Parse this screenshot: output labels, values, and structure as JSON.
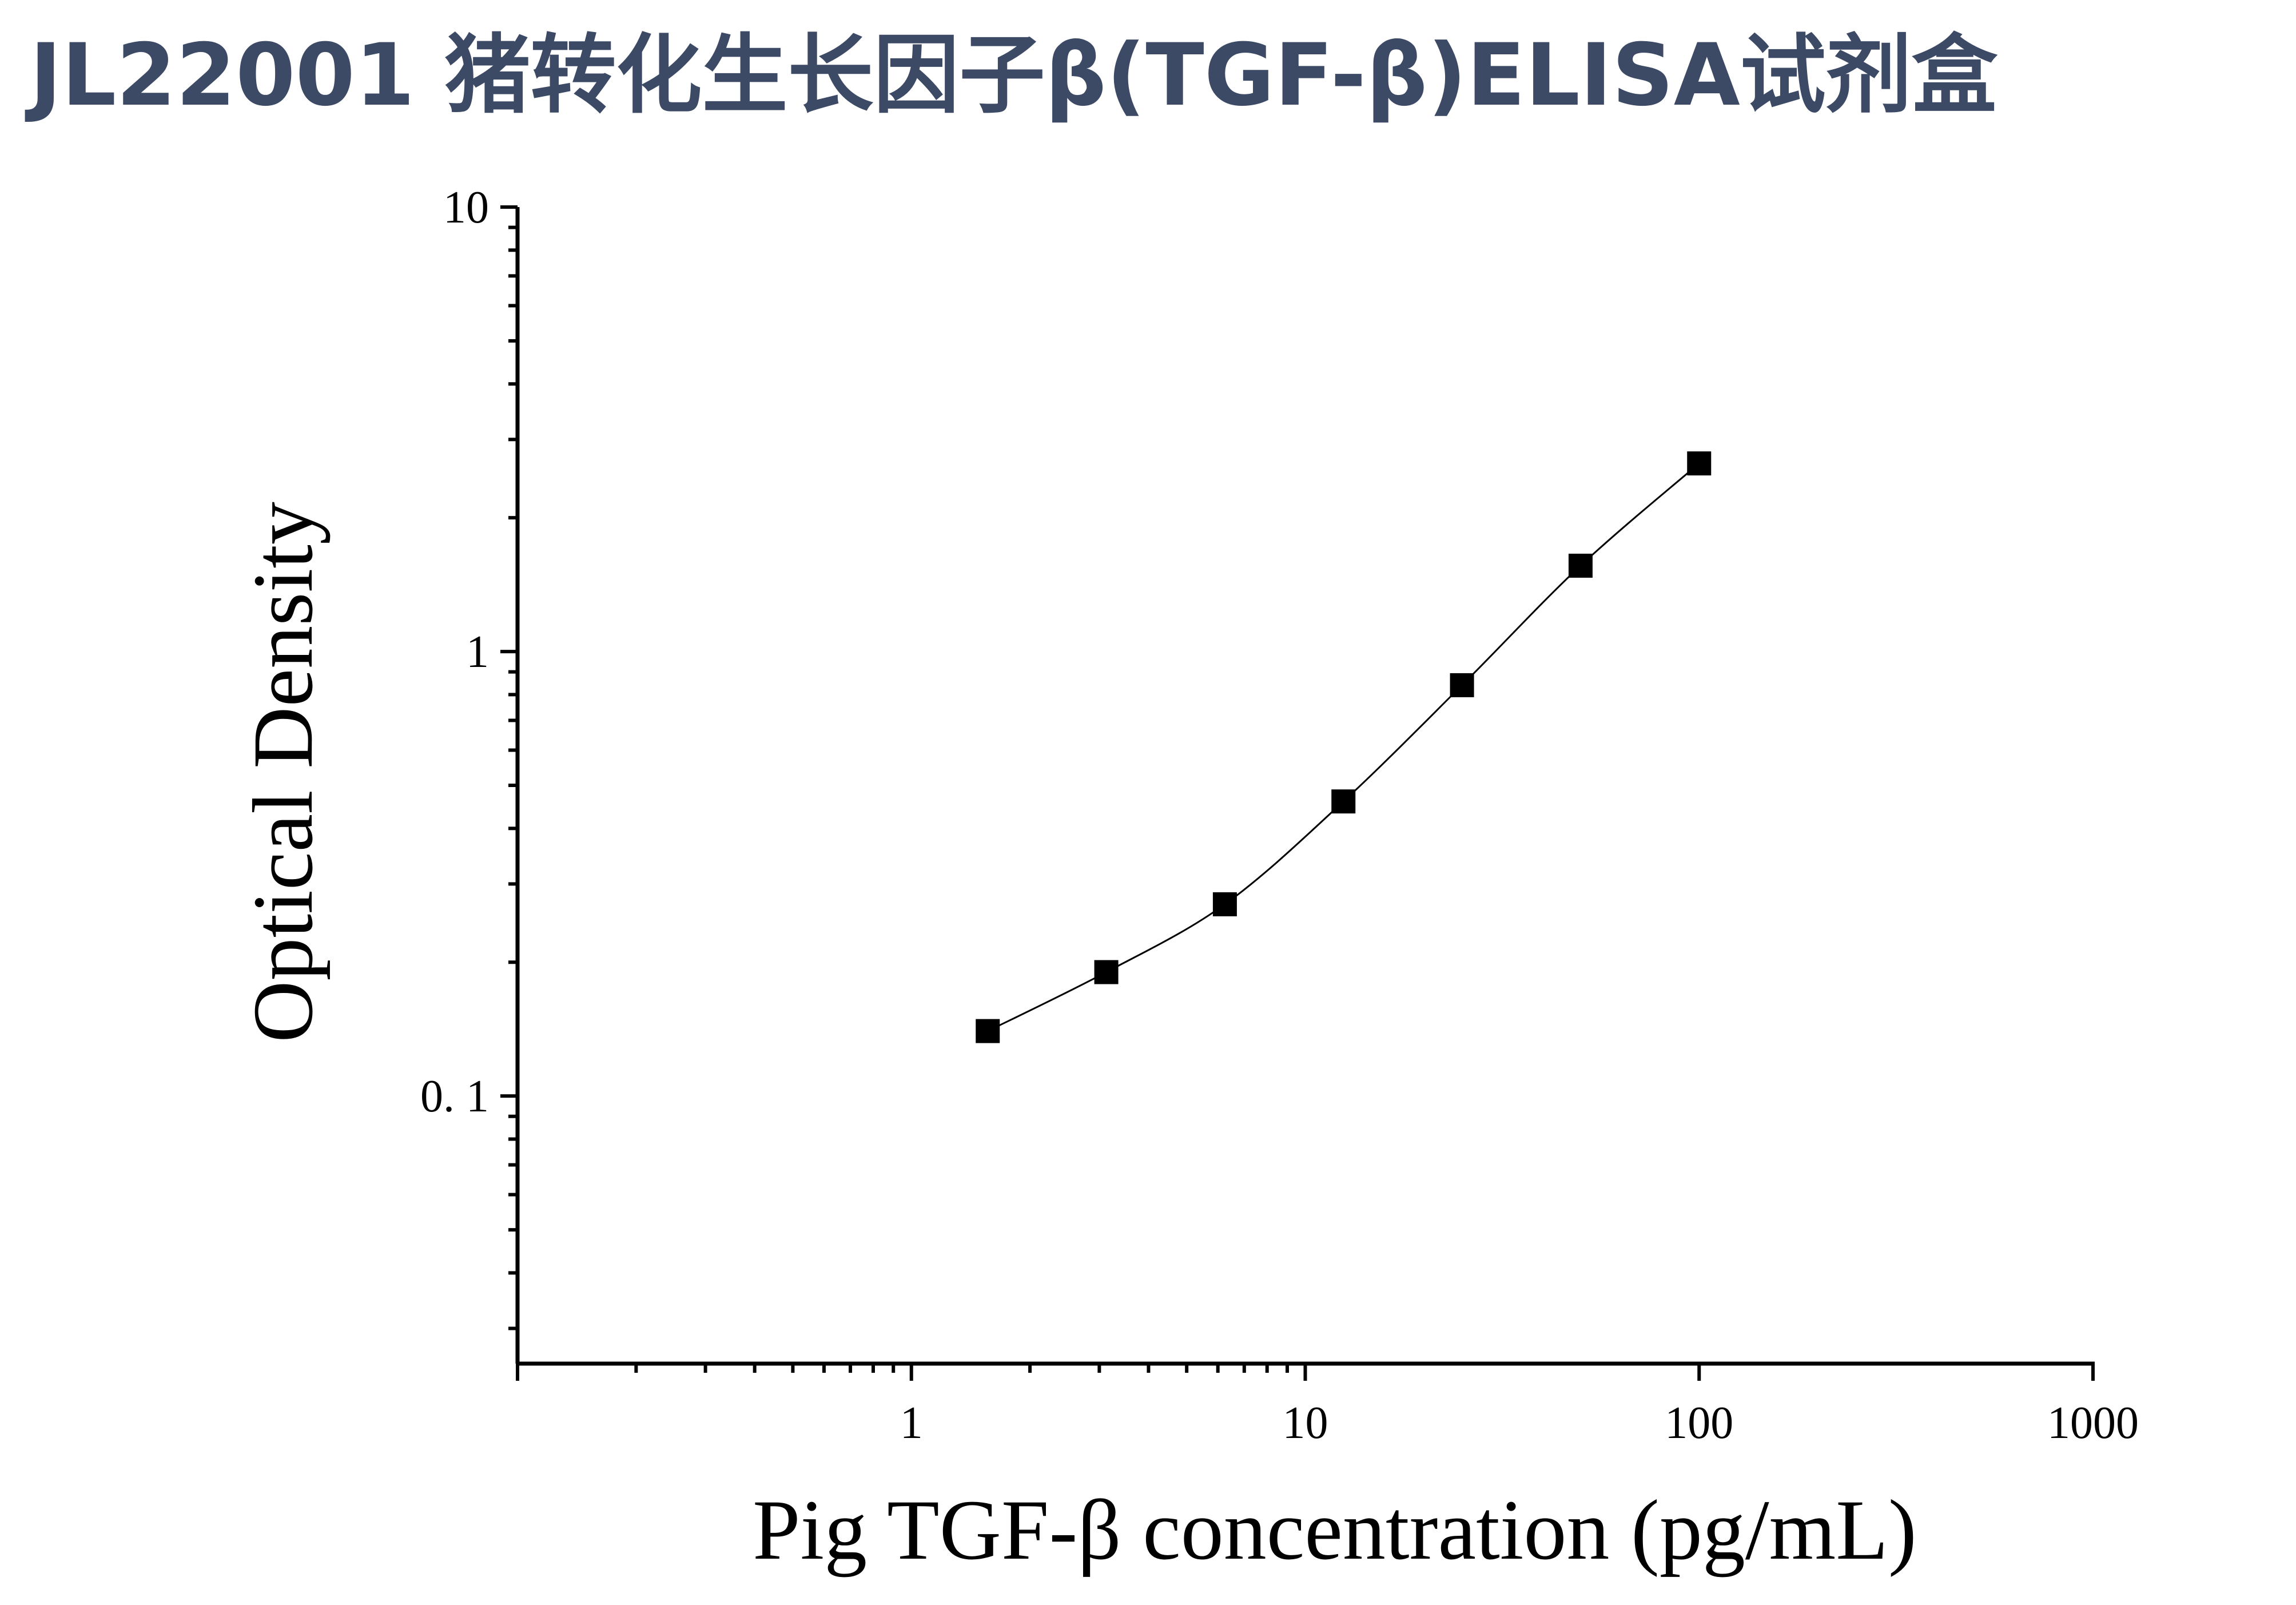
{
  "page": {
    "title": "JL22001 猪转化生长因子β(TGF-β)ELISA试剂盒"
  },
  "colors": {
    "title": "#3d4a66",
    "axis": "#000000",
    "markers": "#000000",
    "curve": "#000000"
  },
  "chart_data": {
    "type": "scatter",
    "xlabel": "Pig TGF-β concentration (pg/mL)",
    "ylabel": "Optical Density",
    "xscale": "log",
    "yscale": "log",
    "xlim": [
      0.1,
      1000
    ],
    "ylim": [
      0.025,
      10
    ],
    "xticks": [
      {
        "value": 1,
        "label": "1"
      },
      {
        "value": 10,
        "label": "10"
      },
      {
        "value": 100,
        "label": "100"
      },
      {
        "value": 1000,
        "label": "1000"
      }
    ],
    "yticks": [
      {
        "value": 0.1,
        "label": "0. 1"
      },
      {
        "value": 1,
        "label": "1"
      },
      {
        "value": 10,
        "label": "10"
      }
    ],
    "grid": false,
    "series": [
      {
        "marker": "square",
        "fit_curve": true,
        "points": [
          {
            "x": 1.5625,
            "y": 0.14
          },
          {
            "x": 3.125,
            "y": 0.19
          },
          {
            "x": 6.25,
            "y": 0.27
          },
          {
            "x": 12.5,
            "y": 0.46
          },
          {
            "x": 25,
            "y": 0.84
          },
          {
            "x": 50,
            "y": 1.56
          },
          {
            "x": 100,
            "y": 2.65
          }
        ]
      }
    ]
  }
}
